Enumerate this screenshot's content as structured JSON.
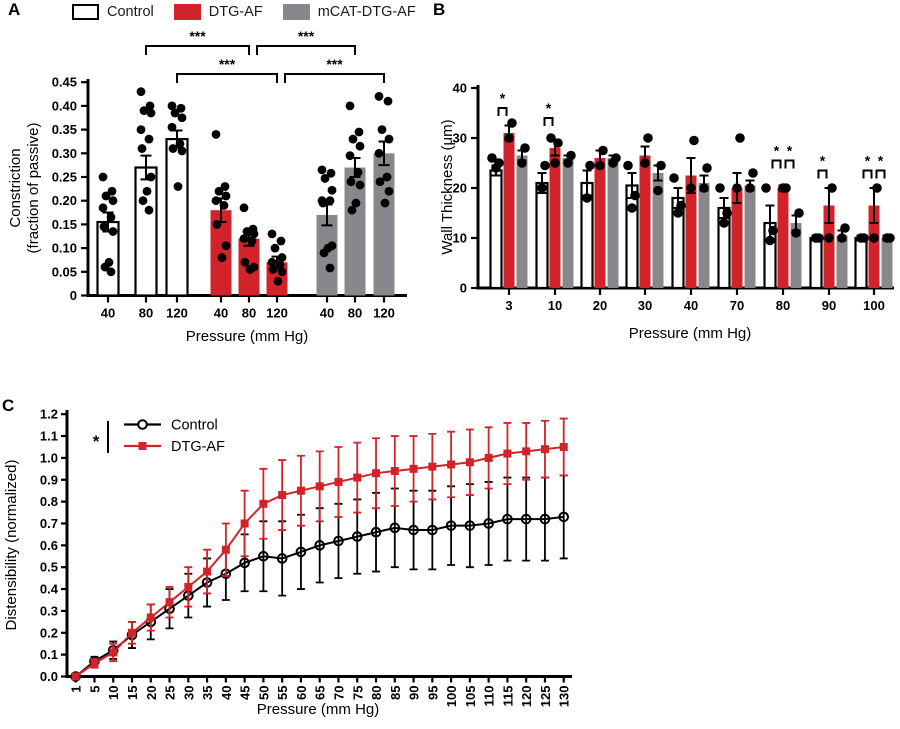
{
  "figure": {
    "panels": [
      {
        "label": "A"
      },
      {
        "label": "B"
      },
      {
        "label": "C"
      }
    ]
  },
  "legend": {
    "items": [
      {
        "label": "Control",
        "color": "#ffffff",
        "border": "#000000"
      },
      {
        "label": "DTG-AF",
        "color": "#d2232a",
        "border": ""
      },
      {
        "label": "mCAT-DTG-AF",
        "color": "#87888b",
        "border": ""
      }
    ]
  },
  "colors": {
    "red": "#d2232a",
    "gray": "#87888b",
    "black": "#000000",
    "white": "#ffffff"
  },
  "chart_data": [
    {
      "panel": "A",
      "type": "bar",
      "xlabel": "Pressure (mm Hg)",
      "ylabel_lines": [
        "Constriction",
        "(fraction of passive)"
      ],
      "categories": [
        "40",
        "80",
        "120"
      ],
      "ylim": [
        0,
        0.45
      ],
      "ytick_values": [
        0,
        0.05,
        0.1,
        0.15,
        0.2,
        0.25,
        0.3,
        0.35,
        0.4,
        0.45
      ],
      "ytick_labels": [
        "0",
        "0.05",
        "0.10",
        "0.15",
        "0.20",
        "0.25",
        "0.30",
        "0.35",
        "0.40",
        "0.45"
      ],
      "series": [
        {
          "name": "Control",
          "fill": "#ffffff",
          "outline": true,
          "means": [
            0.155,
            0.27,
            0.33
          ],
          "sem": [
            0.02,
            0.025,
            0.018
          ],
          "dots": [
            [
              0.25,
              0.22,
              0.21,
              0.2,
              0.185,
              0.165,
              0.145,
              0.135,
              0.07,
              0.06,
              0.05
            ],
            [
              0.43,
              0.4,
              0.39,
              0.385,
              0.35,
              0.33,
              0.31,
              0.25,
              0.22,
              0.2,
              0.18
            ],
            [
              0.4,
              0.395,
              0.385,
              0.375,
              0.355,
              0.32,
              0.31,
              0.305,
              0.23
            ]
          ]
        },
        {
          "name": "DTG-AF",
          "fill": "#d2232a",
          "outline": false,
          "means": [
            0.18,
            0.12,
            0.07
          ],
          "sem": [
            0.025,
            0.015,
            0.012
          ],
          "dots": [
            [
              0.34,
              0.23,
              0.22,
              0.21,
              0.2,
              0.19,
              0.15,
              0.105,
              0.08
            ],
            [
              0.185,
              0.14,
              0.135,
              0.13,
              0.12,
              0.115,
              0.07,
              0.06,
              0.055
            ],
            [
              0.13,
              0.115,
              0.1,
              0.08,
              0.07,
              0.065,
              0.055,
              0.05,
              0.03
            ]
          ]
        },
        {
          "name": "mCAT-DTG-AF",
          "fill": "#87888b",
          "outline": false,
          "means": [
            0.17,
            0.27,
            0.3
          ],
          "sem": [
            0.022,
            0.02,
            0.025
          ],
          "dots": [
            [
              0.265,
              0.258,
              0.247,
              0.222,
              0.2,
              0.2,
              0.195,
              0.105,
              0.1,
              0.09,
              0.058
            ],
            [
              0.4,
              0.345,
              0.33,
              0.315,
              0.295,
              0.26,
              0.24,
              0.233,
              0.195,
              0.18
            ],
            [
              0.42,
              0.41,
              0.35,
              0.33,
              0.3,
              0.25,
              0.24,
              0.22,
              0.195
            ]
          ]
        }
      ],
      "sig": [
        {
          "s1": 0,
          "g1": 1,
          "s2": 1,
          "g2": 1,
          "row": 0,
          "label": "***"
        },
        {
          "s1": 1,
          "g1": 1,
          "s2": 2,
          "g2": 1,
          "row": 0,
          "label": "***"
        },
        {
          "s1": 0,
          "g1": 2,
          "s2": 1,
          "g2": 2,
          "row": 1,
          "label": "***"
        },
        {
          "s1": 1,
          "g1": 2,
          "s2": 2,
          "g2": 2,
          "row": 1,
          "label": "***"
        }
      ]
    },
    {
      "panel": "B",
      "type": "bar",
      "xlabel": "Pressure (mm Hg)",
      "ylabel_lines": [
        "Wall Thickness (μm)"
      ],
      "categories": [
        "3",
        "10",
        "20",
        "30",
        "40",
        "70",
        "80",
        "90",
        "100"
      ],
      "ylim": [
        0,
        40
      ],
      "ytick_values": [
        0,
        10,
        20,
        30,
        40
      ],
      "ytick_labels": [
        "0",
        "10",
        "20",
        "30",
        "40"
      ],
      "series": [
        {
          "name": "Control",
          "fill": "#ffffff",
          "outline": true,
          "means": [
            23.5,
            21,
            21,
            20.5,
            18,
            16,
            13,
            10,
            10
          ],
          "sem": [
            1,
            2,
            2.5,
            2.5,
            2,
            2,
            3.5,
            0.5,
            0.5
          ],
          "dots": [
            [
              24,
              25,
              26
            ],
            [
              20,
              24.5
            ],
            [
              18,
              24.5
            ],
            [
              16,
              18.5,
              24.5
            ],
            [
              15,
              16.5,
              22
            ],
            [
              13,
              15,
              20
            ],
            [
              9.5,
              11.5,
              20
            ],
            [
              10,
              10
            ],
            [
              10,
              10
            ]
          ]
        },
        {
          "name": "DTG-AF",
          "fill": "#d2232a",
          "outline": false,
          "means": [
            31,
            28,
            26,
            26.5,
            22.5,
            20,
            20,
            16.5,
            16.5
          ],
          "sem": [
            1.5,
            1.5,
            1.5,
            1.8,
            3.5,
            3,
            0.5,
            3.5,
            3.5
          ],
          "dots": [
            [
              30,
              33
            ],
            [
              25,
              29,
              30
            ],
            [
              24.5,
              27.5
            ],
            [
              25,
              30
            ],
            [
              20,
              29.5
            ],
            [
              20,
              30
            ],
            [
              20,
              20
            ],
            [
              10,
              20
            ],
            [
              10,
              20
            ]
          ]
        },
        {
          "name": "mCAT-DTG-AF",
          "fill": "#87888b",
          "outline": false,
          "means": [
            26.5,
            26,
            26,
            23,
            21,
            20.5,
            13,
            10.5,
            10
          ],
          "sem": [
            1,
            0.5,
            0.5,
            1.5,
            1.5,
            1,
            1.5,
            1,
            0.5
          ],
          "dots": [
            [
              25,
              28
            ],
            [
              25,
              26.5
            ],
            [
              25,
              26
            ],
            [
              19.5,
              24.5
            ],
            [
              20,
              24
            ],
            [
              20,
              23
            ],
            [
              11,
              15
            ],
            [
              10,
              12
            ],
            [
              10,
              10
            ]
          ]
        }
      ],
      "sig": [
        {
          "g": 0,
          "s1": 0,
          "s2": 1,
          "y": 36,
          "label": "*"
        },
        {
          "g": 1,
          "s1": 0,
          "s2": 1,
          "y": 34,
          "label": "*"
        },
        {
          "g": 6,
          "s1": 0,
          "s2": 1,
          "y": 25.5,
          "label": "*"
        },
        {
          "g": 6,
          "s1": 1,
          "s2": 2,
          "y": 25.5,
          "label": "*"
        },
        {
          "g": 7,
          "s1": 0,
          "s2": 1,
          "y": 23.5,
          "label": "*"
        },
        {
          "g": 8,
          "s1": 0,
          "s2": 1,
          "y": 23.5,
          "label": "*"
        },
        {
          "g": 8,
          "s1": 1,
          "s2": 2,
          "y": 23.5,
          "label": "*"
        }
      ]
    },
    {
      "panel": "C",
      "type": "line",
      "xlabel": "Pressure (mm Hg)",
      "ylabel": "Distensibility (normalized)",
      "sig_label": "*",
      "ylim": [
        0,
        1.2
      ],
      "ytick_values": [
        0,
        0.1,
        0.2,
        0.3,
        0.4,
        0.5,
        0.6,
        0.7,
        0.8,
        0.9,
        1.0,
        1.1,
        1.2
      ],
      "ytick_labels": [
        "0.0",
        "0.1",
        "0.2",
        "0.3",
        "0.4",
        "0.5",
        "0.6",
        "0.7",
        "0.8",
        "0.9",
        "1.0",
        "1.1",
        "1.2"
      ],
      "x": [
        1,
        5,
        10,
        15,
        20,
        25,
        30,
        35,
        40,
        45,
        50,
        55,
        60,
        65,
        70,
        75,
        80,
        85,
        90,
        95,
        100,
        105,
        110,
        115,
        120,
        125,
        130
      ],
      "series": [
        {
          "name": "Control",
          "color": "#000000",
          "marker": "circle",
          "values": [
            0.0,
            0.07,
            0.12,
            0.19,
            0.25,
            0.31,
            0.37,
            0.43,
            0.47,
            0.52,
            0.55,
            0.54,
            0.57,
            0.6,
            0.62,
            0.64,
            0.66,
            0.68,
            0.67,
            0.67,
            0.69,
            0.69,
            0.7,
            0.72,
            0.72,
            0.72,
            0.73
          ],
          "sem": [
            0.005,
            0.02,
            0.04,
            0.06,
            0.08,
            0.09,
            0.1,
            0.11,
            0.12,
            0.13,
            0.16,
            0.17,
            0.17,
            0.17,
            0.17,
            0.17,
            0.18,
            0.18,
            0.18,
            0.18,
            0.18,
            0.19,
            0.19,
            0.19,
            0.19,
            0.19,
            0.19
          ]
        },
        {
          "name": "DTG-AF",
          "color": "#d2232a",
          "marker": "square",
          "values": [
            0.0,
            0.06,
            0.11,
            0.2,
            0.27,
            0.34,
            0.41,
            0.48,
            0.58,
            0.7,
            0.79,
            0.83,
            0.85,
            0.87,
            0.89,
            0.91,
            0.93,
            0.94,
            0.95,
            0.96,
            0.97,
            0.98,
            1.0,
            1.02,
            1.03,
            1.04,
            1.05
          ],
          "sem": [
            0.005,
            0.02,
            0.04,
            0.05,
            0.06,
            0.07,
            0.09,
            0.1,
            0.12,
            0.15,
            0.16,
            0.16,
            0.16,
            0.16,
            0.16,
            0.16,
            0.16,
            0.16,
            0.15,
            0.15,
            0.15,
            0.15,
            0.14,
            0.14,
            0.13,
            0.13,
            0.13
          ]
        }
      ]
    }
  ]
}
